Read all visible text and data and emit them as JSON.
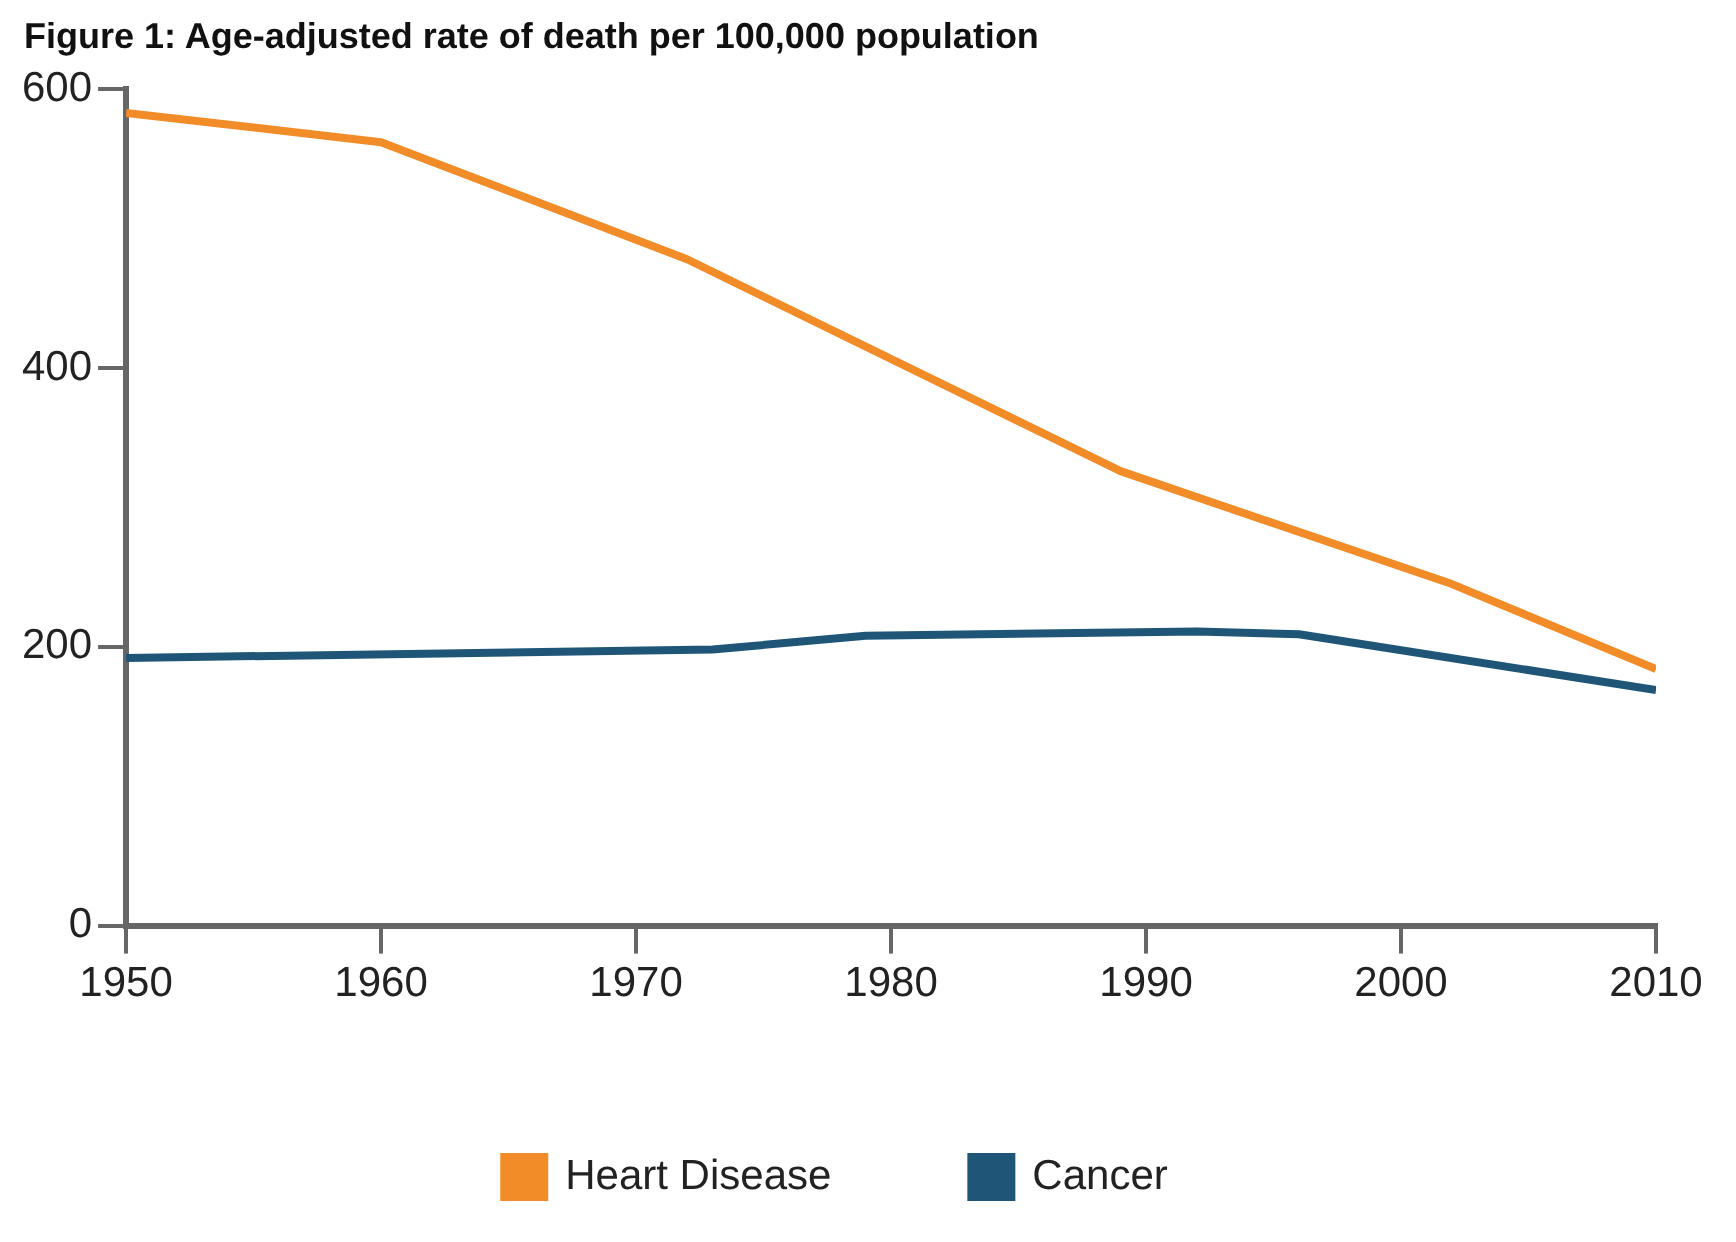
{
  "chart_data": {
    "type": "line",
    "title": "Figure 1: Age-adjusted rate of death per 100,000 population",
    "series": [
      {
        "name": "Heart Disease",
        "color": "#f28c28",
        "x": [
          1950,
          1960,
          1972,
          1989,
          2002,
          2010
        ],
        "values": [
          583,
          562,
          478,
          326,
          245,
          184
        ]
      },
      {
        "name": "Cancer",
        "color": "#1f5678",
        "x": [
          1950,
          1973,
          1979,
          1992,
          1996,
          2010
        ],
        "values": [
          192,
          198,
          208,
          211,
          209,
          169
        ]
      }
    ],
    "xlim": [
      1950,
      2010
    ],
    "xticks": [
      1950,
      1960,
      1970,
      1980,
      1990,
      2000,
      2010
    ],
    "ylim": [
      0,
      600
    ],
    "yticks": [
      0,
      200,
      400,
      600
    ],
    "grid": false,
    "legend": "bottom",
    "marker": "none",
    "line_style": "solid"
  }
}
